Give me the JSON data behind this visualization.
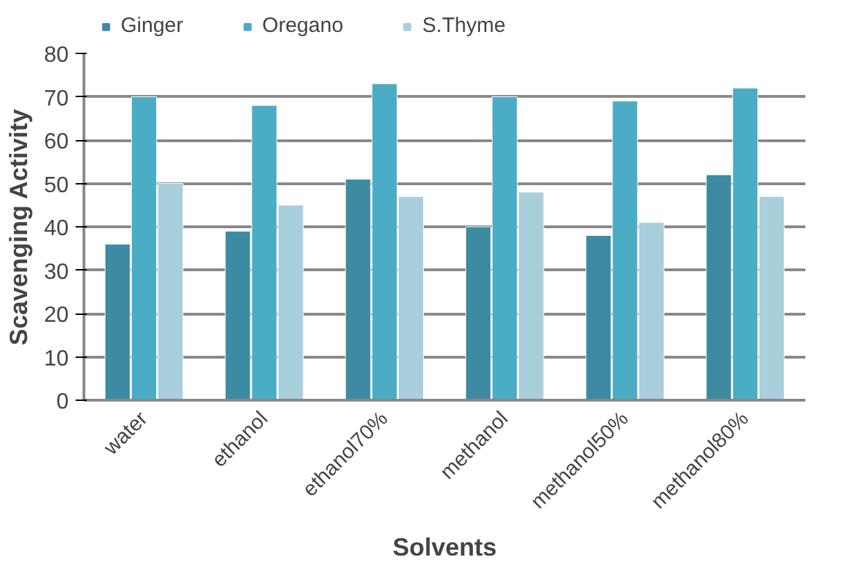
{
  "chart_data": {
    "type": "bar",
    "xlabel": "Solvents",
    "ylabel": "Scavenging Activity",
    "categories": [
      "water",
      "ethanol",
      "ethanol70%",
      "methanol",
      "methanol50%",
      "methanol80%"
    ],
    "series": [
      {
        "name": "Ginger",
        "color": "#3d8ba3",
        "values": [
          36,
          39,
          51,
          40,
          38,
          52
        ]
      },
      {
        "name": "Oregano",
        "color": "#4bacc6",
        "values": [
          70,
          68,
          73,
          70,
          69,
          72
        ]
      },
      {
        "name": "S.Thyme",
        "color": "#a9cedc",
        "values": [
          50,
          45,
          47,
          48,
          41,
          47
        ]
      }
    ],
    "ylim": [
      0,
      80
    ],
    "yticks": [
      0,
      10,
      20,
      30,
      40,
      50,
      60,
      70,
      80
    ],
    "grid": "y",
    "legend": "top"
  }
}
